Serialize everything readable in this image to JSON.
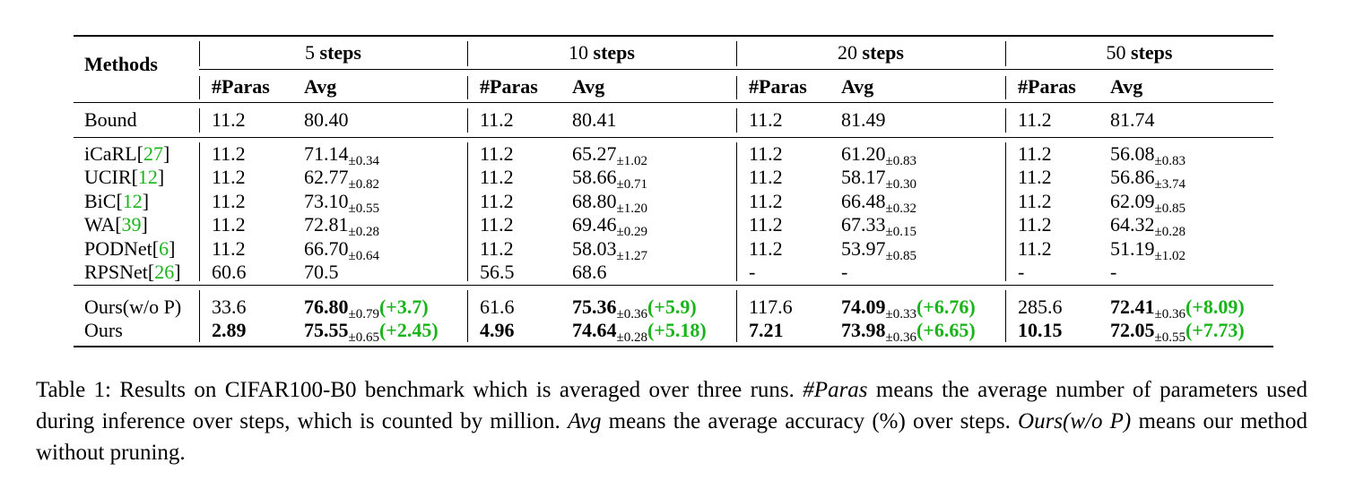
{
  "table": {
    "header": {
      "methods_label": "Methods",
      "step_groups": [
        {
          "num": "5",
          "word": "steps"
        },
        {
          "num": "10",
          "word": "steps"
        },
        {
          "num": "20",
          "word": "steps"
        },
        {
          "num": "50",
          "word": "steps"
        }
      ],
      "paras_label": "#Paras",
      "avg_label": "Avg"
    },
    "bound": {
      "method": "Bound",
      "cols": [
        {
          "paras": "11.2",
          "avg": "80.40"
        },
        {
          "paras": "11.2",
          "avg": "80.41"
        },
        {
          "paras": "11.2",
          "avg": "81.49"
        },
        {
          "paras": "11.2",
          "avg": "81.74"
        }
      ]
    },
    "baselines": [
      {
        "name": "iCaRL",
        "ref": "27",
        "cols": [
          {
            "paras": "11.2",
            "avg": "71.14",
            "std": "±0.34"
          },
          {
            "paras": "11.2",
            "avg": "65.27",
            "std": "±1.02"
          },
          {
            "paras": "11.2",
            "avg": "61.20",
            "std": "±0.83"
          },
          {
            "paras": "11.2",
            "avg": "56.08",
            "std": "±0.83"
          }
        ]
      },
      {
        "name": "UCIR",
        "ref": "12",
        "cols": [
          {
            "paras": "11.2",
            "avg": "62.77",
            "std": "±0.82"
          },
          {
            "paras": "11.2",
            "avg": "58.66",
            "std": "±0.71"
          },
          {
            "paras": "11.2",
            "avg": "58.17",
            "std": "±0.30"
          },
          {
            "paras": "11.2",
            "avg": "56.86",
            "std": "±3.74"
          }
        ]
      },
      {
        "name": "BiC",
        "ref": "12",
        "cols": [
          {
            "paras": "11.2",
            "avg": "73.10",
            "std": "±0.55"
          },
          {
            "paras": "11.2",
            "avg": "68.80",
            "std": "±1.20"
          },
          {
            "paras": "11.2",
            "avg": "66.48",
            "std": "±0.32"
          },
          {
            "paras": "11.2",
            "avg": "62.09",
            "std": "±0.85"
          }
        ]
      },
      {
        "name": "WA",
        "ref": "39",
        "cols": [
          {
            "paras": "11.2",
            "avg": "72.81",
            "std": "±0.28"
          },
          {
            "paras": "11.2",
            "avg": "69.46",
            "std": "±0.29"
          },
          {
            "paras": "11.2",
            "avg": "67.33",
            "std": "±0.15"
          },
          {
            "paras": "11.2",
            "avg": "64.32",
            "std": "±0.28"
          }
        ]
      },
      {
        "name": "PODNet",
        "ref": "6",
        "cols": [
          {
            "paras": "11.2",
            "avg": "66.70",
            "std": "±0.64"
          },
          {
            "paras": "11.2",
            "avg": "58.03",
            "std": "±1.27"
          },
          {
            "paras": "11.2",
            "avg": "53.97",
            "std": "±0.85"
          },
          {
            "paras": "11.2",
            "avg": "51.19",
            "std": "±1.02"
          }
        ]
      },
      {
        "name": "RPSNet",
        "ref": "26",
        "cols": [
          {
            "paras": "60.6",
            "avg": "70.5",
            "std": ""
          },
          {
            "paras": "56.5",
            "avg": "68.6",
            "std": ""
          },
          {
            "paras": "-",
            "avg": "-",
            "std": ""
          },
          {
            "paras": "-",
            "avg": "-",
            "std": ""
          }
        ]
      }
    ],
    "ours": [
      {
        "name": "Ours(w/o P)",
        "paras_bold": false,
        "cols": [
          {
            "paras": "33.6",
            "avg": "76.80",
            "std": "±0.79",
            "delta": "(+3.7)"
          },
          {
            "paras": "61.6",
            "avg": "75.36",
            "std": "±0.36",
            "delta": "(+5.9)"
          },
          {
            "paras": "117.6",
            "avg": "74.09",
            "std": "±0.33",
            "delta": "(+6.76)"
          },
          {
            "paras": "285.6",
            "avg": "72.41",
            "std": "±0.36",
            "delta": "(+8.09)"
          }
        ]
      },
      {
        "name": "Ours",
        "paras_bold": true,
        "cols": [
          {
            "paras": "2.89",
            "avg": "75.55",
            "std": "±0.65",
            "delta": "(+2.45)"
          },
          {
            "paras": "4.96",
            "avg": "74.64",
            "std": "±0.28",
            "delta": "(+5.18)"
          },
          {
            "paras": "7.21",
            "avg": "73.98",
            "std": "±0.36",
            "delta": "(+6.65)"
          },
          {
            "paras": "10.15",
            "avg": "72.05",
            "std": "±0.55",
            "delta": "(+7.73)"
          }
        ]
      }
    ]
  },
  "caption": {
    "p1": "Table 1: Results on CIFAR100-B0 benchmark which is averaged over three runs. ",
    "i1": "#Paras",
    "p2": " means the average number of parameters used during inference over steps, which is counted by million. ",
    "i2": "Avg",
    "p3": " means the average accuracy (%) over steps. ",
    "i3": "Ours(w/o P)",
    "p4": " means our method without pruning."
  },
  "colors": {
    "citation": "#19b419",
    "delta": "#19b419",
    "text": "#000000"
  }
}
